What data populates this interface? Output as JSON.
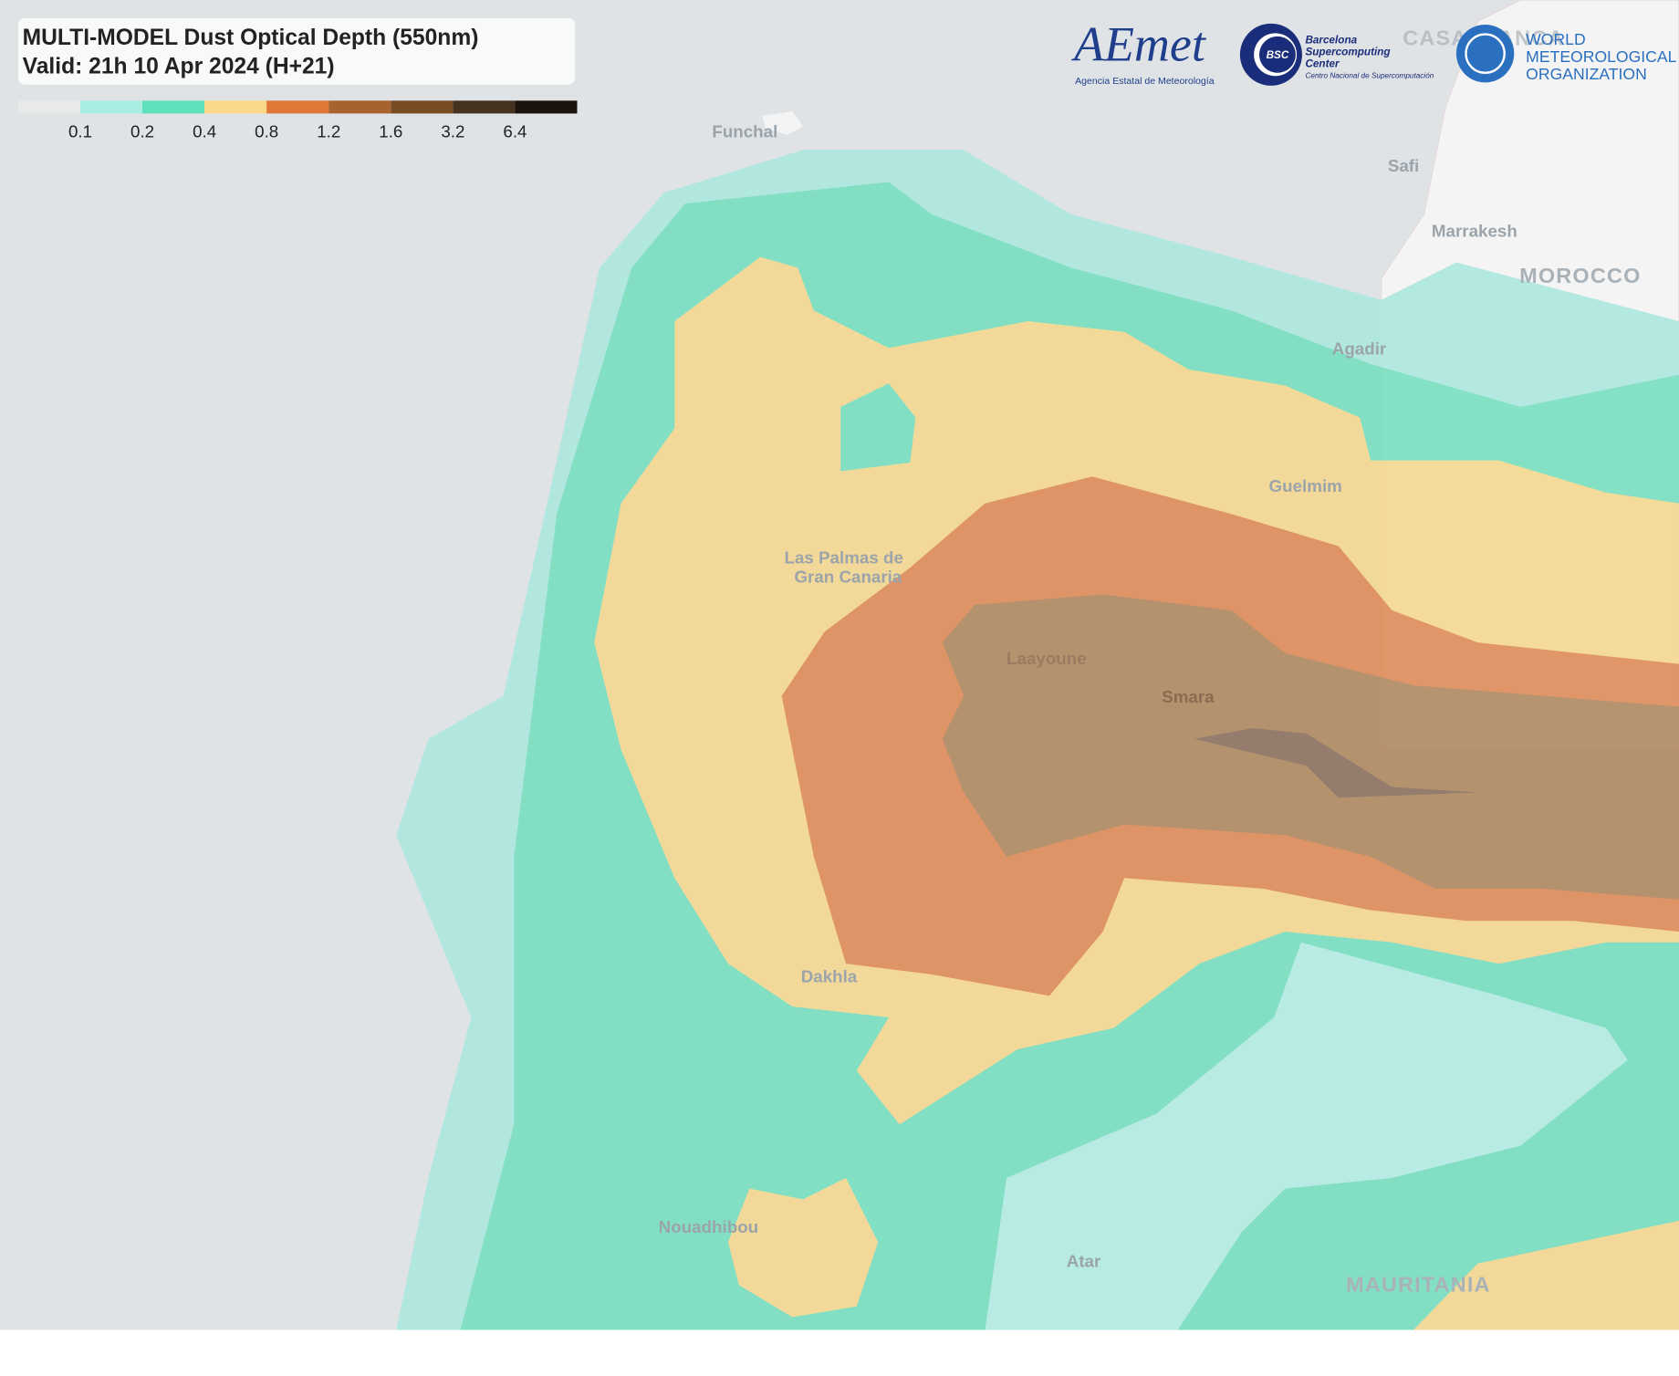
{
  "header": {
    "title": "MULTI-MODEL Dust Optical Depth (550nm)",
    "valid": "Valid: 21h 10 Apr 2024 (H+21)"
  },
  "legend": {
    "colors": [
      "#e8eaea",
      "#a8ece2",
      "#5fe0bc",
      "#fcd98a",
      "#e07838",
      "#a8622e",
      "#7a4c26",
      "#463220",
      "#1c140c"
    ],
    "labels": [
      "0.1",
      "0.2",
      "0.4",
      "0.8",
      "1.2",
      "1.6",
      "3.2",
      "6.4"
    ]
  },
  "logos": {
    "aemet": "AEmet",
    "aemet_sub": "Agencia Estatal de Meteorología",
    "bsc": "BSC",
    "bsc_lines": [
      "Barcelona",
      "Supercomputing",
      "Center"
    ],
    "bsc_sub": "Centro Nacional de Supercomputación",
    "wmo_lines": [
      "WORLD",
      "METEOROLOGICAL",
      "ORGANIZATION"
    ]
  },
  "places": {
    "funchal": "Funchal",
    "casablanca": "CASABLANCA",
    "safi": "Safi",
    "marrakesh": "Marrakesh",
    "morocco": "MOROCCO",
    "agadir": "Agadir",
    "guelmim": "Guelmim",
    "las_palmas": [
      "Las Palmas de",
      "Gran Canaria"
    ],
    "laayoune": "Laayoune",
    "smara": "Smara",
    "dakhla": "Dakhla",
    "nouadhibou": "Nouadhibou",
    "atar": "Atar",
    "mauritania": "MAURITANIA"
  }
}
